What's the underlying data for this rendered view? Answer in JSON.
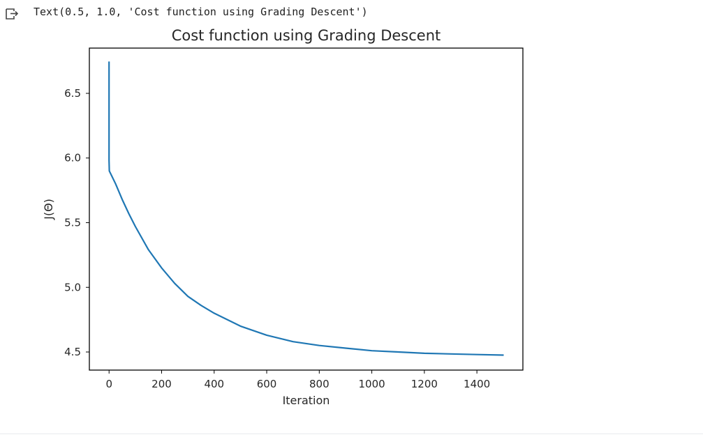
{
  "output": {
    "icon": "output-redirect-icon",
    "text": "Text(0.5, 1.0, 'Cost function using Grading Descent')"
  },
  "chart_data": {
    "type": "line",
    "title": "Cost function using Grading Descent",
    "xlabel": "Iteration",
    "ylabel": "J(Θ)",
    "xlim": [
      -75,
      1575
    ],
    "ylim": [
      4.36,
      6.85
    ],
    "xticks": [
      0,
      200,
      400,
      600,
      800,
      1000,
      1200,
      1400
    ],
    "xtick_labels": [
      "0",
      "200",
      "400",
      "600",
      "800",
      "1000",
      "1200",
      "1400"
    ],
    "yticks": [
      4.5,
      5.0,
      5.5,
      6.0,
      6.5
    ],
    "ytick_labels": [
      "4.5",
      "5.0",
      "5.5",
      "6.0",
      "6.5"
    ],
    "grid": false,
    "legend": "none",
    "series": [
      {
        "color": "#1f77b4",
        "x": [
          0,
          0,
          1,
          25,
          50,
          75,
          100,
          150,
          200,
          250,
          300,
          350,
          400,
          450,
          500,
          600,
          700,
          800,
          900,
          1000,
          1100,
          1200,
          1300,
          1400,
          1499
        ],
        "y": [
          6.74,
          5.98,
          5.9,
          5.8,
          5.68,
          5.57,
          5.47,
          5.29,
          5.15,
          5.03,
          4.93,
          4.86,
          4.8,
          4.75,
          4.7,
          4.63,
          4.58,
          4.55,
          4.53,
          4.51,
          4.5,
          4.49,
          4.485,
          4.48,
          4.476
        ]
      }
    ]
  }
}
